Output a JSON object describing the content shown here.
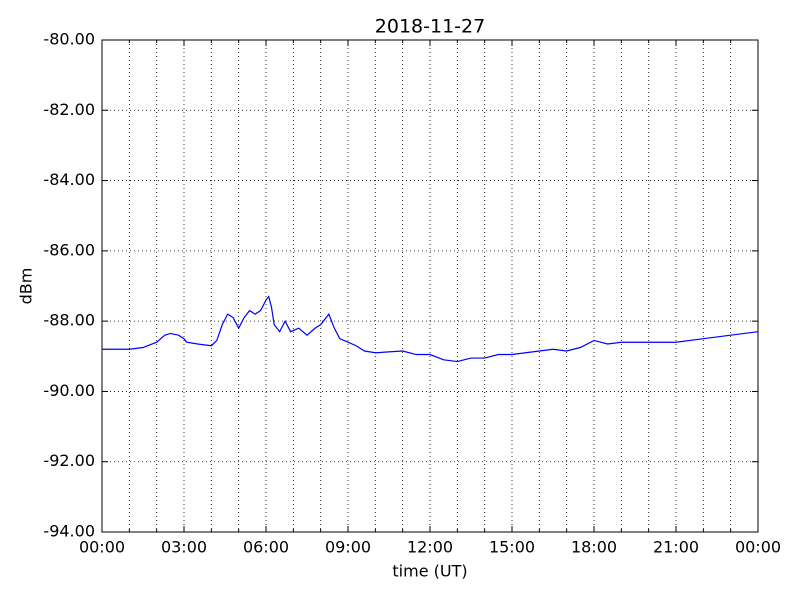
{
  "chart_data": {
    "type": "line",
    "title": "2018-11-27",
    "x_label": "time (UT)",
    "y_label": "dBm",
    "x": [
      0,
      0.5,
      1,
      1.5,
      2,
      2.3,
      2.5,
      2.8,
      3,
      3.1,
      3.5,
      4,
      4.2,
      4.4,
      4.6,
      4.8,
      5,
      5.2,
      5.4,
      5.6,
      5.8,
      6,
      6.1,
      6.2,
      6.3,
      6.5,
      6.7,
      6.9,
      7.2,
      7.5,
      7.8,
      8,
      8.3,
      8.5,
      8.7,
      9,
      9.3,
      9.6,
      10,
      11,
      11.5,
      12,
      12.5,
      13,
      13.5,
      14,
      14.5,
      15,
      15.5,
      16,
      16.5,
      17,
      17.5,
      18,
      18.5,
      19,
      20,
      21,
      22,
      23,
      24
    ],
    "series": [
      {
        "name": "dBm",
        "color": "#0000ff",
        "values": [
          -88.8,
          -88.8,
          -88.8,
          -88.75,
          -88.6,
          -88.4,
          -88.35,
          -88.4,
          -88.5,
          -88.6,
          -88.65,
          -88.7,
          -88.55,
          -88.1,
          -87.8,
          -87.9,
          -88.2,
          -87.9,
          -87.7,
          -87.8,
          -87.7,
          -87.4,
          -87.3,
          -87.6,
          -88.1,
          -88.3,
          -88.0,
          -88.3,
          -88.2,
          -88.4,
          -88.2,
          -88.1,
          -87.8,
          -88.2,
          -88.5,
          -88.6,
          -88.7,
          -88.85,
          -88.9,
          -88.85,
          -88.95,
          -88.95,
          -89.1,
          -89.15,
          -89.05,
          -89.05,
          -88.95,
          -88.95,
          -88.9,
          -88.85,
          -88.8,
          -88.85,
          -88.75,
          -88.55,
          -88.65,
          -88.6,
          -88.6,
          -88.6,
          -88.5,
          -88.4,
          -88.3
        ]
      }
    ],
    "xlim": [
      0,
      24
    ],
    "xticks": [
      {
        "value": 0,
        "label": "00:00"
      },
      {
        "value": 3,
        "label": "03:00"
      },
      {
        "value": 6,
        "label": "06:00"
      },
      {
        "value": 9,
        "label": "09:00"
      },
      {
        "value": 12,
        "label": "12:00"
      },
      {
        "value": 15,
        "label": "15:00"
      },
      {
        "value": 18,
        "label": "18:00"
      },
      {
        "value": 21,
        "label": "21:00"
      },
      {
        "value": 24,
        "label": "00:00"
      }
    ],
    "xminorticks": [
      1,
      2,
      4,
      5,
      7,
      8,
      10,
      11,
      13,
      14,
      16,
      17,
      19,
      20,
      22,
      23
    ],
    "ylim": [
      -94,
      -80
    ],
    "yticks": [
      {
        "value": -94,
        "label": "-94.00"
      },
      {
        "value": -92,
        "label": "-92.00"
      },
      {
        "value": -90,
        "label": "-90.00"
      },
      {
        "value": -88,
        "label": "-88.00"
      },
      {
        "value": -86,
        "label": "-86.00"
      },
      {
        "value": -84,
        "label": "-84.00"
      },
      {
        "value": -82,
        "label": "-82.00"
      },
      {
        "value": -80,
        "label": "-80.00"
      }
    ],
    "grid": true
  }
}
